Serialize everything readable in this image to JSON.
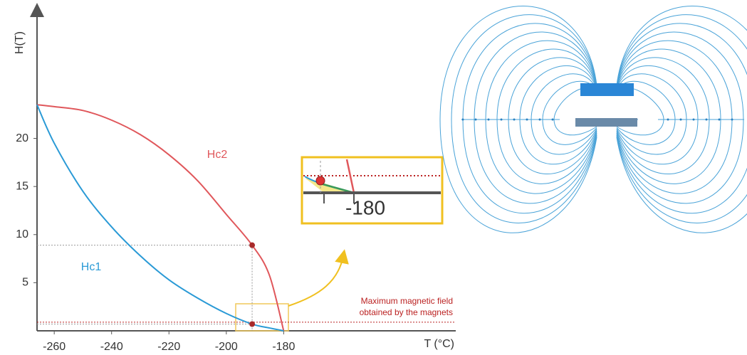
{
  "chart_data": {
    "type": "line",
    "x_label": "T (°C)",
    "y_label": "H(T)",
    "x": [
      -266,
      -260,
      -250,
      -240,
      -230,
      -220,
      -210,
      -200,
      -191,
      -185,
      -180
    ],
    "series": [
      {
        "name": "Hc2",
        "color": "#e0575b",
        "values": [
          23.5,
          23.3,
          22.9,
          21.9,
          20.4,
          18.3,
          15.6,
          12.1,
          8.9,
          5.8,
          0
        ]
      },
      {
        "name": "Hc1",
        "color": "#2a9ad6",
        "values": [
          23.5,
          19.5,
          14.5,
          10.8,
          7.8,
          5.3,
          3.4,
          1.8,
          0.7,
          0.3,
          0
        ]
      }
    ],
    "max_field_line": 0.9,
    "annotation": [
      "Maximum magnetic field",
      "obtained by the magnets"
    ],
    "inset_label": "-180",
    "xlim": [
      -266,
      -120
    ],
    "ylim": [
      0,
      33.5
    ],
    "xticks": [
      -260,
      -240,
      -220,
      -200,
      -180
    ],
    "yticks": [
      5,
      10,
      15,
      20
    ]
  }
}
